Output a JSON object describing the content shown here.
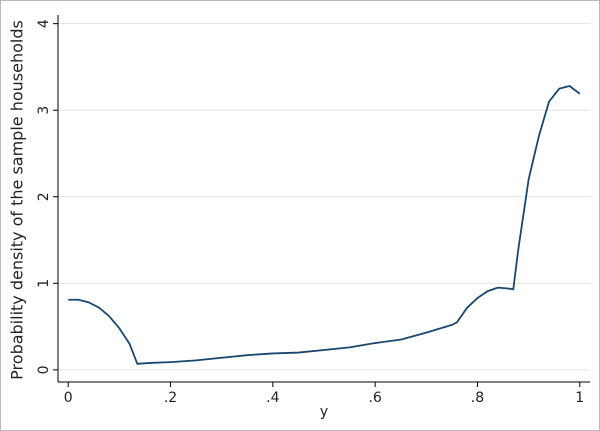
{
  "chart_data": {
    "type": "line",
    "x_label": "y",
    "y_label": "Probability density of the sample households",
    "x": [
      0,
      0.02,
      0.04,
      0.06,
      0.08,
      0.1,
      0.12,
      0.135,
      0.16,
      0.2,
      0.25,
      0.3,
      0.35,
      0.4,
      0.45,
      0.5,
      0.55,
      0.6,
      0.65,
      0.7,
      0.75,
      0.76,
      0.78,
      0.8,
      0.82,
      0.84,
      0.86,
      0.87,
      0.88,
      0.9,
      0.92,
      0.94,
      0.96,
      0.98,
      1.0
    ],
    "series": [
      {
        "color": "#1a476f",
        "values": [
          0.81,
          0.81,
          0.78,
          0.72,
          0.62,
          0.48,
          0.3,
          0.07,
          0.08,
          0.09,
          0.11,
          0.14,
          0.17,
          0.19,
          0.2,
          0.23,
          0.26,
          0.31,
          0.35,
          0.43,
          0.52,
          0.55,
          0.72,
          0.83,
          0.91,
          0.95,
          0.94,
          0.93,
          1.4,
          2.2,
          2.7,
          3.1,
          3.25,
          3.28,
          3.19
        ]
      }
    ],
    "xlim": [
      -0.02,
      1.02
    ],
    "ylim": [
      -0.14,
      4.1
    ],
    "xticks": [
      0,
      {
        "value": 0.2,
        "label": ".2"
      },
      {
        "value": 0.4,
        "label": ".4"
      },
      {
        "value": 0.6,
        "label": ".6"
      },
      {
        "value": 0.8,
        "label": ".8"
      },
      1
    ],
    "yticks": [
      0,
      1,
      2,
      3,
      4
    ],
    "grid": true
  }
}
